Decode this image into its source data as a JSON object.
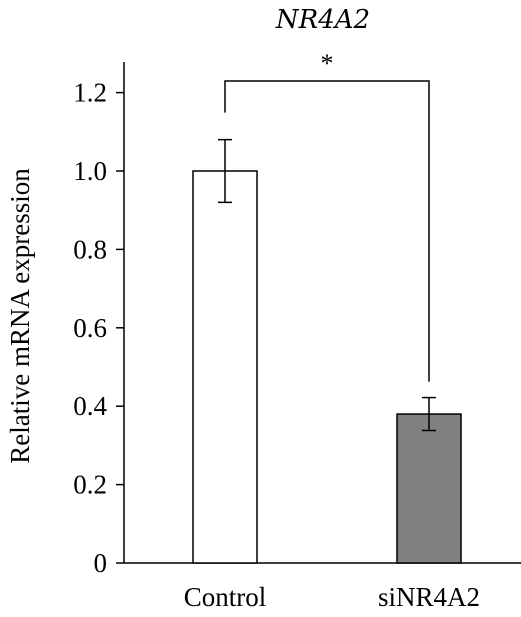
{
  "chart_data": {
    "type": "bar",
    "title": "NR4A2",
    "xlabel": "",
    "ylabel": "Relative mRNA expression",
    "categories": [
      "Control",
      "siNR4A2"
    ],
    "values": [
      1.0,
      0.38
    ],
    "error_bars": [
      0.08,
      0.042
    ],
    "bar_colors": [
      "#ffffff",
      "#808080"
    ],
    "yticks": [
      0,
      0.2,
      0.4,
      0.6,
      0.8,
      1.0,
      1.2
    ],
    "ytick_labels": [
      "0",
      "0.2",
      "0.4",
      "0.6",
      "0.8",
      "1.0",
      "1.2"
    ],
    "ylim": [
      0,
      1.3
    ],
    "significance": {
      "label": "*",
      "between": [
        "Control",
        "siNR4A2"
      ]
    },
    "grid": false,
    "legend": "none"
  }
}
